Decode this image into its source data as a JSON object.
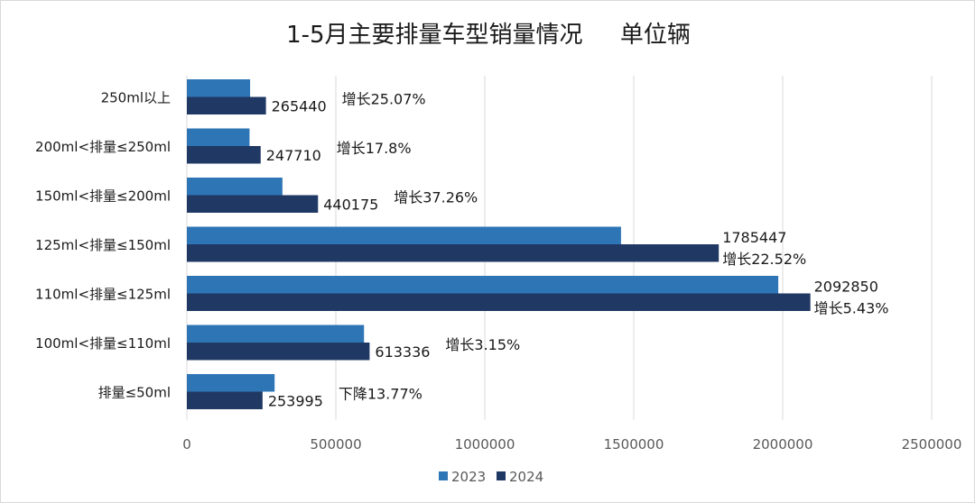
{
  "chart_data": {
    "type": "bar",
    "orientation": "horizontal",
    "title": "1-5月主要排量车型销量情况     单位辆",
    "categories": [
      "250ml以上",
      "200ml<排量≤250ml",
      "150ml<排量≤200ml",
      "125ml<排量≤150ml",
      "110ml<排量≤125ml",
      "100ml<排量≤110ml",
      "排量≤50ml"
    ],
    "series": [
      {
        "name": "2023",
        "color": "#2e75b6",
        "values": [
          212220,
          210310,
          320710,
          1457292,
          1985080,
          594590,
          294550
        ]
      },
      {
        "name": "2024",
        "color": "#203864",
        "values": [
          265440,
          247710,
          440175,
          1785447,
          2092850,
          613336,
          253995
        ]
      }
    ],
    "data_labels": [
      {
        "category": "250ml以上",
        "value": "265440",
        "change": "增长25.07%"
      },
      {
        "category": "200ml<排量≤250ml",
        "value": "247710",
        "change": "增长17.8%"
      },
      {
        "category": "150ml<排量≤200ml",
        "value": "440175",
        "change": "增长37.26%"
      },
      {
        "category": "125ml<排量≤150ml",
        "value": "1785447",
        "change": "增长22.52%"
      },
      {
        "category": "110ml<排量≤125ml",
        "value": "2092850",
        "change": "增长5.43%"
      },
      {
        "category": "100ml<排量≤110ml",
        "value": "613336",
        "change": "增长3.15%"
      },
      {
        "category": "排量≤50ml",
        "value": "253995",
        "change": "下降13.77%"
      }
    ],
    "x_ticks": [
      "0",
      "500000",
      "1000000",
      "1500000",
      "2000000",
      "2500000"
    ],
    "xlim": [
      0,
      2500000
    ],
    "grid": true,
    "legend": "bottom"
  }
}
